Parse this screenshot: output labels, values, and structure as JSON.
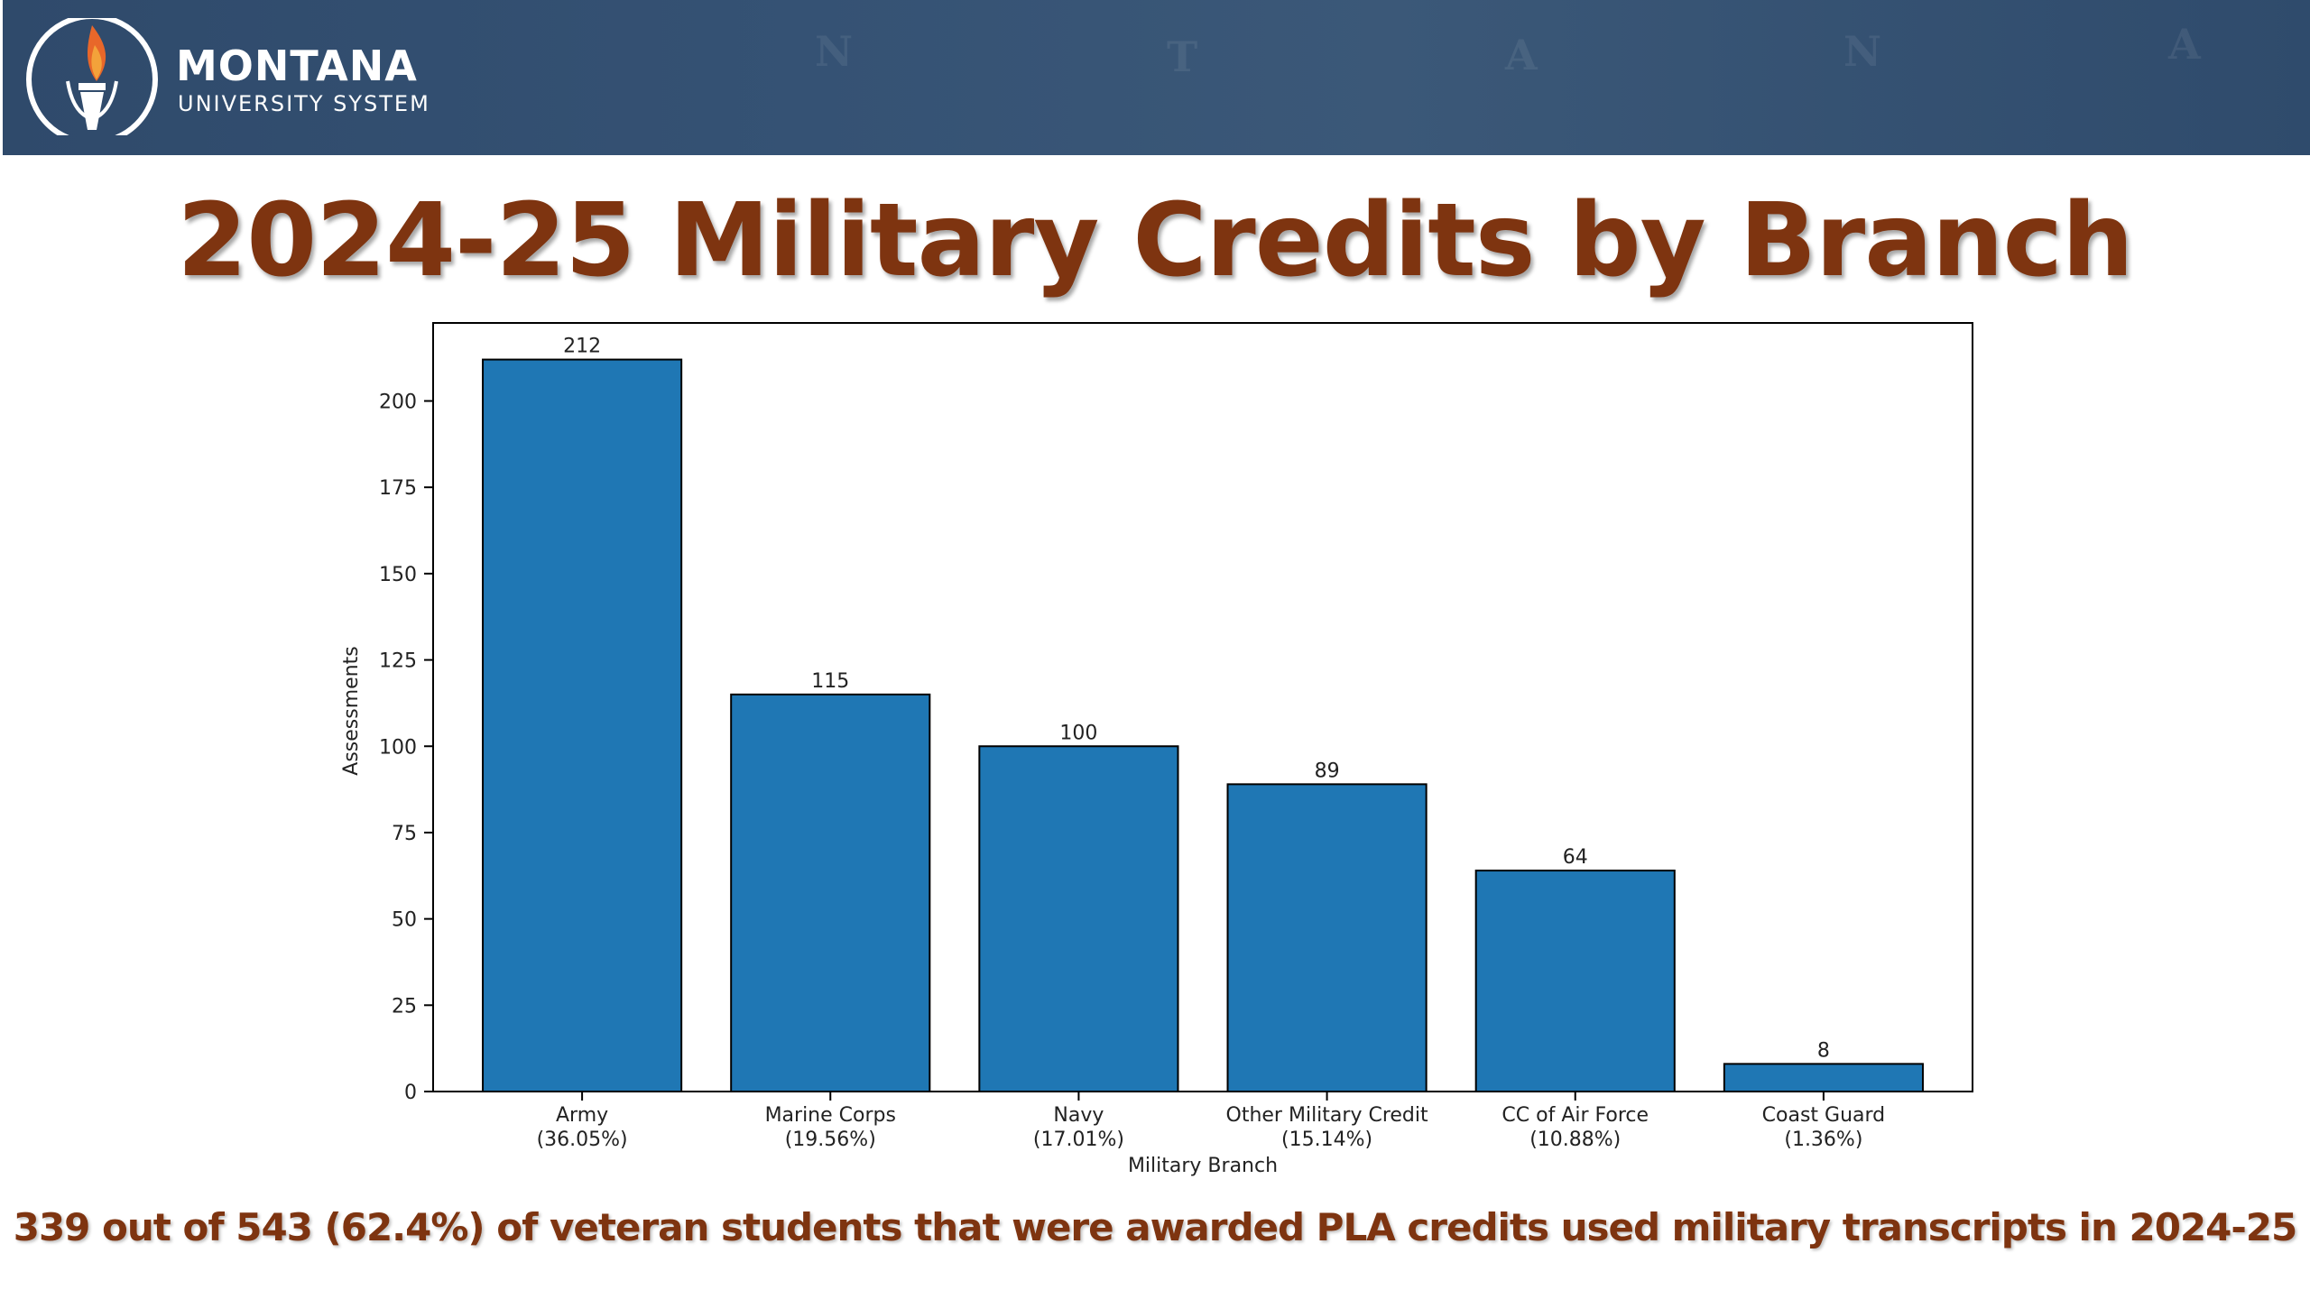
{
  "header": {
    "logo_line1": "MONTANA",
    "logo_line2": "UNIVERSITY SYSTEM",
    "map_letters": [
      "N",
      "T",
      "A",
      "N",
      "A"
    ]
  },
  "title": "2024-25 Military Credits by Branch",
  "chart_data": {
    "type": "bar",
    "categories": [
      "Army",
      "Marine Corps",
      "Navy",
      "Other Military Credit",
      "CC of Air Force",
      "Coast Guard"
    ],
    "category_pct": [
      "(36.05%)",
      "(19.56%)",
      "(17.01%)",
      "(15.14%)",
      "(10.88%)",
      "(1.36%)"
    ],
    "values": [
      212,
      115,
      100,
      89,
      64,
      8
    ],
    "value_labels": [
      "212",
      "115",
      "100",
      "89",
      "64",
      "8"
    ],
    "xlabel": "Military Branch",
    "ylabel": "Assessments",
    "yticks": [
      0,
      25,
      50,
      75,
      100,
      125,
      150,
      175,
      200
    ],
    "ylim": [
      0,
      222.6
    ],
    "grid": false,
    "bar_color": "#1f77b4",
    "edge_color": "#000000"
  },
  "footnote": "339 out of 543 (62.4%) of veteran students that were awarded PLA credits used military transcripts in 2024-25",
  "colors": {
    "title": "#7e3410",
    "banner": "#34506f"
  }
}
